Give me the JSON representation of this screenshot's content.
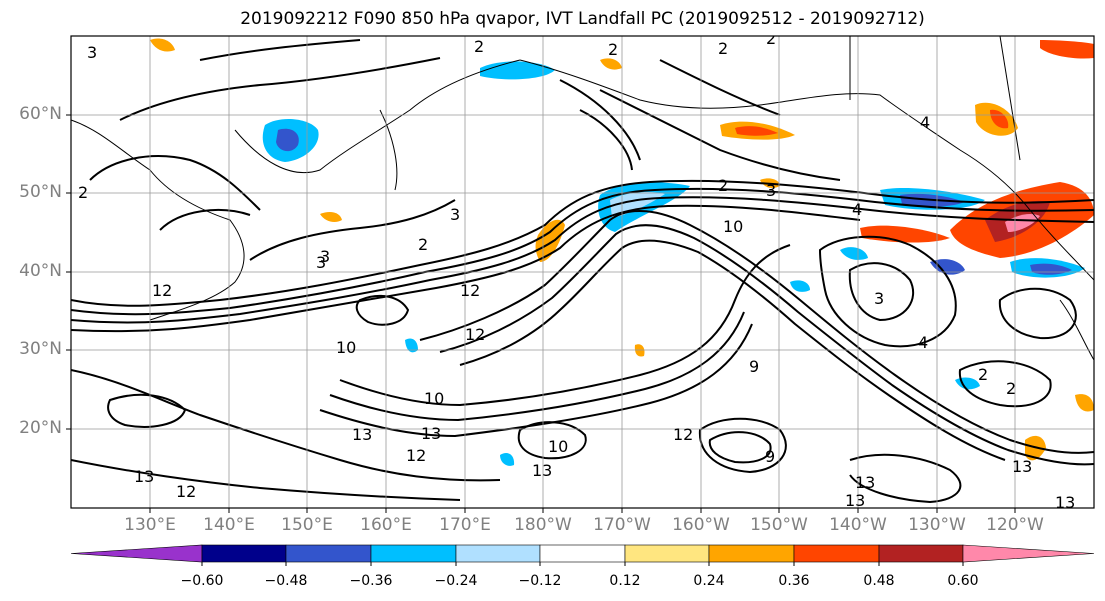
{
  "title": "2019092212 F090 850 hPa qvapor, IVT Landfall PC (2019092512 - 2019092712)",
  "map": {
    "lat_labels": [
      "60°N",
      "50°N",
      "40°N",
      "30°N",
      "20°N"
    ],
    "lon_labels": [
      "130°E",
      "140°E",
      "150°E",
      "160°E",
      "170°E",
      "180°W",
      "170°W",
      "160°W",
      "150°W",
      "140°W",
      "130°W",
      "120°W"
    ],
    "lat_range": [
      10,
      70
    ],
    "lon_range": [
      120,
      250
    ],
    "contour_labels": [
      "2",
      "2",
      "2",
      "2",
      "3",
      "2",
      "3",
      "4",
      "3",
      "2",
      "3",
      "10",
      "12",
      "12",
      "10",
      "10",
      "13",
      "12",
      "13",
      "12",
      "12",
      "10",
      "13",
      "13",
      "13",
      "9",
      "9",
      "3",
      "4",
      "3",
      "2",
      "2",
      "13",
      "13",
      "13",
      "12",
      "4",
      "2"
    ]
  },
  "colorbar": {
    "ticks": [
      "−0.60",
      "−0.48",
      "−0.36",
      "−0.24",
      "−0.12",
      "0.12",
      "0.24",
      "0.36",
      "0.48",
      "0.60"
    ],
    "colors": [
      "#9932CC",
      "#00008B",
      "#3355CC",
      "#00BFFF",
      "#B0E0FF",
      "#FFFFFF",
      "#FFE680",
      "#FFA500",
      "#FF4500",
      "#B22222",
      "#FF88AA"
    ]
  }
}
